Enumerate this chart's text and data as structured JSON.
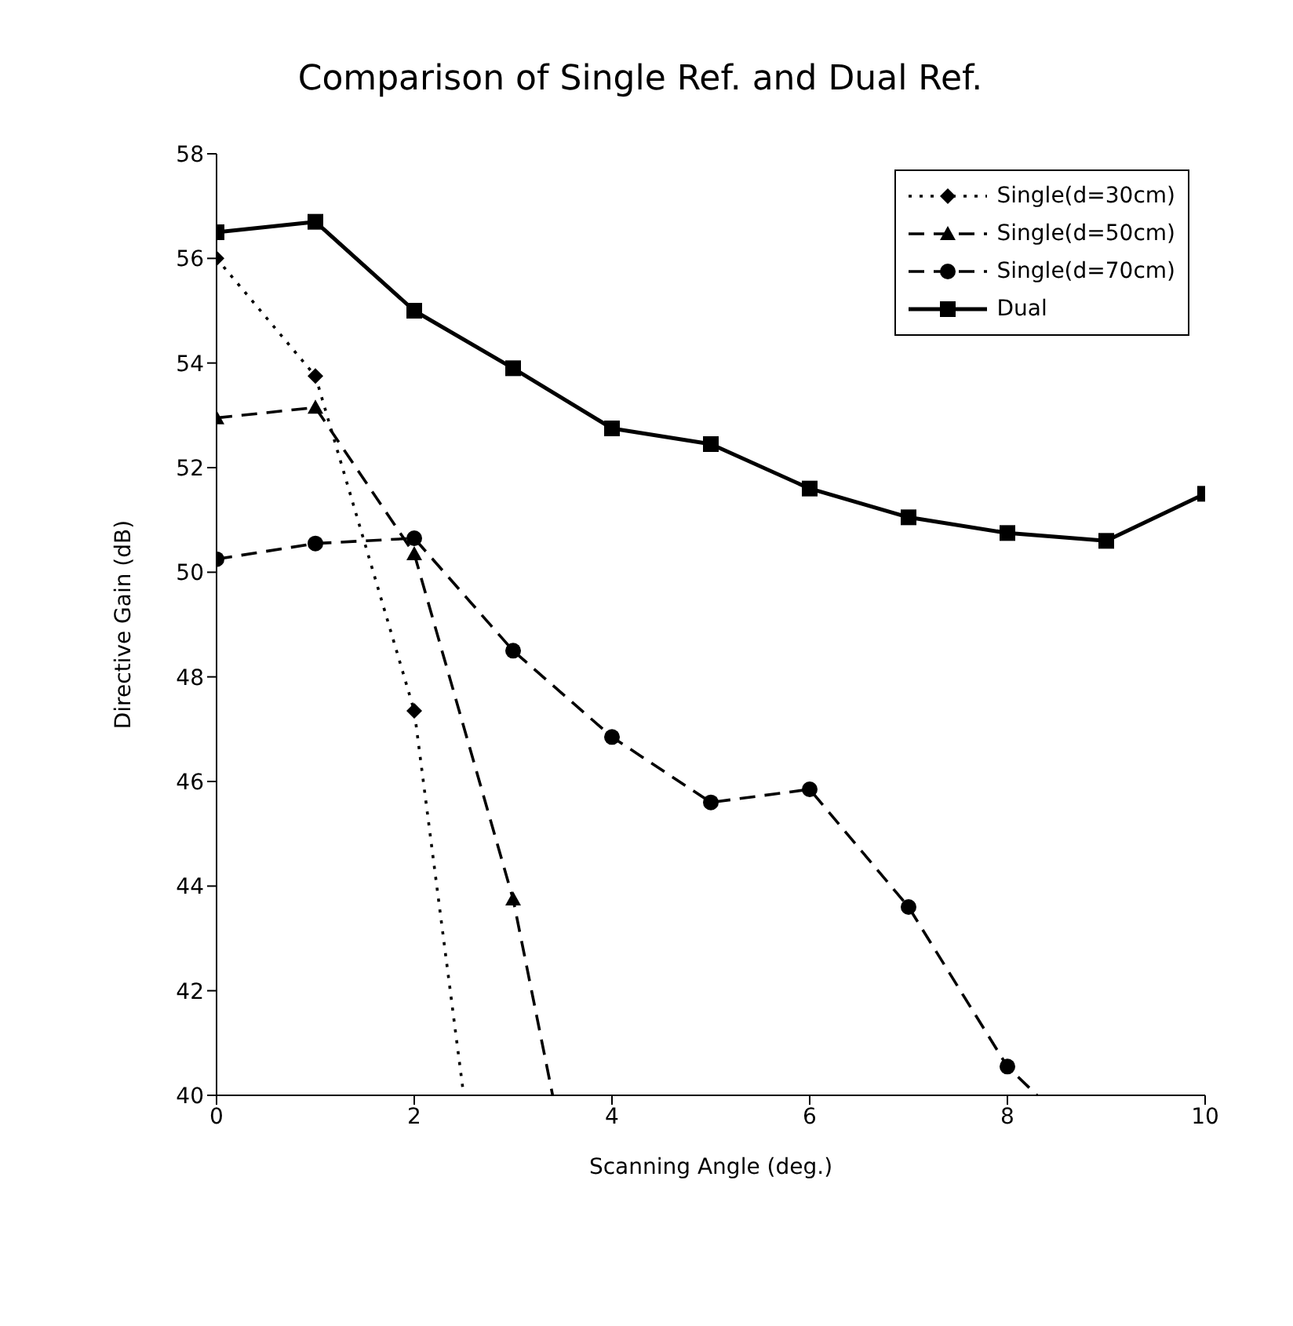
{
  "chart_data": {
    "type": "line",
    "title": "Comparison of Single Ref. and Dual Ref.",
    "xlabel": "Scanning Angle (deg.)",
    "ylabel": "Directive Gain (dB)",
    "xlim": [
      0,
      10
    ],
    "xticks": [
      0,
      2,
      4,
      6,
      8,
      10
    ],
    "ylim": [
      40,
      58
    ],
    "yticks": [
      40,
      42,
      44,
      46,
      48,
      50,
      52,
      54,
      56,
      58
    ],
    "grid": false,
    "legend": "top right",
    "series": [
      {
        "name": "Single(d=30cm)",
        "color": "#000000",
        "marker": "diamond",
        "line_style": "dotted",
        "x": [
          0,
          1,
          2,
          2.5
        ],
        "values": [
          56.0,
          53.75,
          47.35,
          40
        ]
      },
      {
        "name": "Single(d=50cm)",
        "color": "#000000",
        "marker": "triangle",
        "line_style": "dashed",
        "x": [
          0,
          1,
          2,
          3,
          3.4
        ],
        "values": [
          52.95,
          53.15,
          50.35,
          43.75,
          40
        ]
      },
      {
        "name": "Single(d=70cm)",
        "color": "#000000",
        "marker": "circle",
        "line_style": "dashed",
        "x": [
          0,
          1,
          2,
          3,
          4,
          5,
          6,
          7,
          8,
          8.3
        ],
        "values": [
          50.25,
          50.55,
          50.65,
          48.5,
          46.85,
          45.6,
          45.85,
          43.6,
          40.55,
          40
        ]
      },
      {
        "name": "Dual",
        "color": "#000000",
        "marker": "square",
        "line_style": "solid",
        "x": [
          0,
          1,
          2,
          3,
          4,
          5,
          6,
          7,
          8,
          9,
          10
        ],
        "values": [
          56.5,
          56.7,
          55.0,
          53.9,
          52.75,
          52.45,
          51.6,
          51.05,
          50.75,
          50.6,
          51.5
        ]
      }
    ]
  }
}
